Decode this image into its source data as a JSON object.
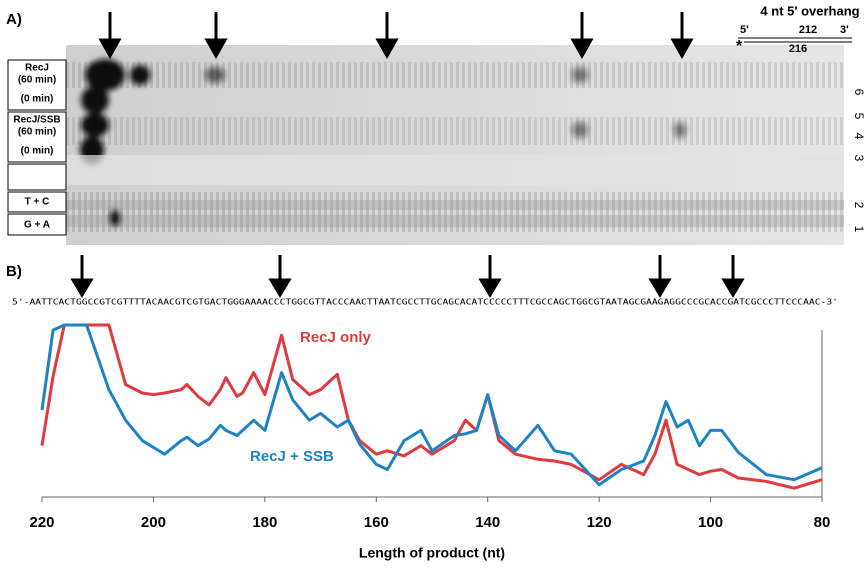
{
  "panel_a": {
    "label": "A)",
    "overhang": {
      "title": "4 nt 5' overhang",
      "five_prime": "5'",
      "top_length": "212",
      "three_prime": "3'",
      "label_mark": "*",
      "bottom_length": "216"
    },
    "lanes": [
      "RecJ",
      "(60 min)",
      "(0 min)",
      "RecJ/SSB",
      "(60 min)",
      "(0 min)",
      "T + C",
      "G + A"
    ],
    "lane_numbers": [
      "6",
      "5",
      "4",
      "3",
      "2",
      "1"
    ]
  },
  "panel_b": {
    "label": "B)",
    "sequence": "5'-AATTCACTGGCCGTCGTTTTACAACGTCGTGACTGGGAAAACCCTGGCGTTACCCAACTTAATCGCCTTGCAGCACATCCCCCTTTCGCCAGCTGGCGTAATAGCGAAGAGGCCCGCACCGATCGCCCTTCCCAAC-3'"
  },
  "chart_data": {
    "type": "line",
    "xlabel": "Length of product (nt)",
    "x": [
      220,
      218,
      216,
      212,
      208,
      205,
      202,
      200,
      198,
      195,
      194,
      192,
      190,
      188,
      187,
      185,
      184,
      182,
      180,
      177,
      175,
      172,
      170,
      167,
      165,
      163,
      160,
      158,
      155,
      152,
      150,
      146,
      144,
      142,
      140,
      138,
      135,
      131,
      128,
      125,
      120,
      116,
      112,
      110,
      108,
      106,
      104,
      102,
      100,
      98,
      95,
      90,
      85,
      80
    ],
    "xlim": [
      220,
      80
    ],
    "xticks": [
      220,
      200,
      180,
      160,
      140,
      120,
      100,
      80
    ],
    "ylim": [
      0,
      100
    ],
    "series": [
      {
        "name": "RecJ only",
        "color": "#e0393e",
        "values": [
          29,
          70,
          100,
          100,
          100,
          65,
          60,
          59,
          60,
          62,
          65,
          58,
          53,
          62,
          69,
          58,
          60,
          72,
          59,
          94,
          68,
          59,
          62,
          71,
          44,
          32,
          24,
          26,
          23,
          29,
          24,
          32,
          44,
          38,
          59,
          32,
          24,
          21,
          20,
          18,
          9,
          18,
          12,
          24,
          44,
          18,
          15,
          12,
          14,
          15,
          10,
          8,
          4,
          9
        ]
      },
      {
        "name": "RecJ + SSB",
        "color": "#1f82c4",
        "values": [
          50,
          97,
          100,
          100,
          62,
          44,
          32,
          28,
          24,
          32,
          34,
          29,
          33,
          41,
          38,
          35,
          38,
          44,
          38,
          72,
          56,
          44,
          48,
          40,
          44,
          30,
          18,
          15,
          32,
          38,
          26,
          35,
          36,
          38,
          59,
          35,
          26,
          41,
          26,
          24,
          6,
          15,
          20,
          35,
          55,
          40,
          44,
          29,
          38,
          38,
          25,
          12,
          9,
          16
        ]
      }
    ]
  }
}
